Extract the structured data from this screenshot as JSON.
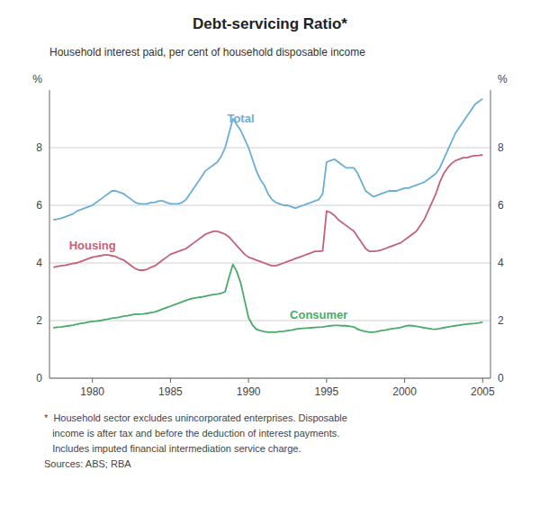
{
  "chart_data": {
    "type": "line",
    "title": "Debt-servicing Ratio*",
    "subtitle": "Household interest paid, per cent of household disposable income",
    "ylabel": "%",
    "y2label": "%",
    "annotations": [
      "*  Household sector excludes unincorporated enterprises. Disposable",
      "   income is after tax and before the deduction of interest payments.",
      "   Includes imputed financial intermediation service charge.",
      "Sources: ABS; RBA"
    ],
    "xlim": [
      1977.25,
      2005.5
    ],
    "xticks": [
      1980,
      1985,
      1990,
      1995,
      2000,
      2005
    ],
    "ylim": [
      0,
      10
    ],
    "yticks": [
      0,
      2,
      4,
      6,
      8
    ],
    "y2lim": [
      0,
      10
    ],
    "y2ticks": [
      0,
      2,
      4,
      6,
      8
    ],
    "grid": true,
    "x": [
      1977.5,
      1977.75,
      1978.0,
      1978.25,
      1978.5,
      1978.75,
      1979.0,
      1979.25,
      1979.5,
      1979.75,
      1980.0,
      1980.25,
      1980.5,
      1980.75,
      1981.0,
      1981.25,
      1981.5,
      1981.75,
      1982.0,
      1982.25,
      1982.5,
      1982.75,
      1983.0,
      1983.25,
      1983.5,
      1983.75,
      1984.0,
      1984.25,
      1984.5,
      1984.75,
      1985.0,
      1985.25,
      1985.5,
      1985.75,
      1986.0,
      1986.25,
      1986.5,
      1986.75,
      1987.0,
      1987.25,
      1987.5,
      1987.75,
      1988.0,
      1988.25,
      1988.5,
      1988.75,
      1989.0,
      1989.25,
      1989.5,
      1989.75,
      1990.0,
      1990.25,
      1990.5,
      1990.75,
      1991.0,
      1991.25,
      1991.5,
      1991.75,
      1992.0,
      1992.25,
      1992.5,
      1992.75,
      1993.0,
      1993.25,
      1993.5,
      1993.75,
      1994.0,
      1994.25,
      1994.5,
      1994.75,
      1995.0,
      1995.25,
      1995.5,
      1995.75,
      1996.0,
      1996.25,
      1996.5,
      1996.75,
      1997.0,
      1997.25,
      1997.5,
      1997.75,
      1998.0,
      1998.25,
      1998.5,
      1998.75,
      1999.0,
      1999.25,
      1999.5,
      1999.75,
      2000.0,
      2000.25,
      2000.5,
      2000.75,
      2001.0,
      2001.25,
      2001.5,
      2001.75,
      2002.0,
      2002.25,
      2002.5,
      2002.75,
      2003.0,
      2003.25,
      2003.5,
      2003.75,
      2004.0,
      2004.25,
      2004.5,
      2004.75,
      2005.0
    ],
    "series": [
      {
        "name": "Total",
        "color": "#6aaed6",
        "values": [
          5.5,
          5.52,
          5.55,
          5.6,
          5.65,
          5.7,
          5.8,
          5.85,
          5.9,
          5.95,
          6.0,
          6.1,
          6.2,
          6.3,
          6.4,
          6.5,
          6.5,
          6.45,
          6.4,
          6.3,
          6.2,
          6.1,
          6.05,
          6.05,
          6.05,
          6.1,
          6.1,
          6.15,
          6.15,
          6.1,
          6.05,
          6.05,
          6.05,
          6.1,
          6.2,
          6.4,
          6.6,
          6.8,
          7.0,
          7.2,
          7.3,
          7.4,
          7.5,
          7.7,
          8.0,
          8.5,
          9.0,
          8.8,
          8.6,
          8.3,
          8.0,
          7.6,
          7.2,
          6.9,
          6.7,
          6.4,
          6.2,
          6.1,
          6.05,
          6.0,
          6.0,
          5.95,
          5.9,
          5.95,
          6.0,
          6.05,
          6.1,
          6.15,
          6.2,
          6.4,
          7.5,
          7.55,
          7.6,
          7.5,
          7.4,
          7.3,
          7.3,
          7.3,
          7.1,
          6.8,
          6.5,
          6.4,
          6.3,
          6.35,
          6.4,
          6.45,
          6.5,
          6.5,
          6.5,
          6.55,
          6.6,
          6.6,
          6.65,
          6.7,
          6.75,
          6.8,
          6.9,
          7.0,
          7.1,
          7.3,
          7.6,
          7.9,
          8.2,
          8.5,
          8.7,
          8.9,
          9.1,
          9.3,
          9.5,
          9.6,
          9.7
        ]
      },
      {
        "name": "Housing",
        "color": "#c4607a",
        "values": [
          3.85,
          3.88,
          3.9,
          3.92,
          3.95,
          3.98,
          4.0,
          4.05,
          4.1,
          4.15,
          4.2,
          4.22,
          4.25,
          4.28,
          4.28,
          4.25,
          4.22,
          4.15,
          4.1,
          4.0,
          3.9,
          3.8,
          3.75,
          3.75,
          3.78,
          3.85,
          3.9,
          4.0,
          4.1,
          4.2,
          4.3,
          4.35,
          4.4,
          4.45,
          4.5,
          4.6,
          4.7,
          4.8,
          4.9,
          5.0,
          5.05,
          5.1,
          5.1,
          5.05,
          5.0,
          4.9,
          4.75,
          4.6,
          4.45,
          4.3,
          4.2,
          4.15,
          4.1,
          4.05,
          4.0,
          3.95,
          3.9,
          3.9,
          3.95,
          4.0,
          4.05,
          4.1,
          4.15,
          4.2,
          4.25,
          4.3,
          4.35,
          4.4,
          4.4,
          4.42,
          5.8,
          5.75,
          5.65,
          5.5,
          5.4,
          5.3,
          5.2,
          5.1,
          4.9,
          4.7,
          4.5,
          4.4,
          4.4,
          4.42,
          4.45,
          4.5,
          4.55,
          4.6,
          4.65,
          4.7,
          4.8,
          4.9,
          5.0,
          5.1,
          5.3,
          5.5,
          5.8,
          6.1,
          6.4,
          6.8,
          7.1,
          7.3,
          7.45,
          7.55,
          7.6,
          7.65,
          7.65,
          7.7,
          7.72,
          7.73,
          7.75
        ]
      },
      {
        "name": "Consumer",
        "color": "#4aaa6a",
        "values": [
          1.75,
          1.77,
          1.78,
          1.8,
          1.82,
          1.84,
          1.87,
          1.9,
          1.92,
          1.95,
          1.97,
          1.98,
          2.0,
          2.03,
          2.05,
          2.08,
          2.1,
          2.12,
          2.15,
          2.17,
          2.2,
          2.22,
          2.22,
          2.23,
          2.25,
          2.28,
          2.3,
          2.35,
          2.4,
          2.45,
          2.5,
          2.55,
          2.6,
          2.65,
          2.7,
          2.75,
          2.78,
          2.8,
          2.82,
          2.85,
          2.88,
          2.9,
          2.92,
          2.95,
          3.0,
          3.5,
          3.95,
          3.7,
          3.3,
          2.7,
          2.1,
          1.85,
          1.7,
          1.65,
          1.62,
          1.6,
          1.6,
          1.6,
          1.62,
          1.63,
          1.65,
          1.67,
          1.7,
          1.72,
          1.73,
          1.74,
          1.75,
          1.76,
          1.77,
          1.78,
          1.8,
          1.82,
          1.83,
          1.83,
          1.82,
          1.82,
          1.8,
          1.78,
          1.7,
          1.65,
          1.62,
          1.6,
          1.6,
          1.62,
          1.65,
          1.67,
          1.7,
          1.72,
          1.74,
          1.76,
          1.8,
          1.83,
          1.82,
          1.8,
          1.78,
          1.75,
          1.73,
          1.71,
          1.7,
          1.72,
          1.75,
          1.78,
          1.8,
          1.82,
          1.84,
          1.86,
          1.88,
          1.89,
          1.9,
          1.92,
          1.95
        ]
      }
    ]
  }
}
